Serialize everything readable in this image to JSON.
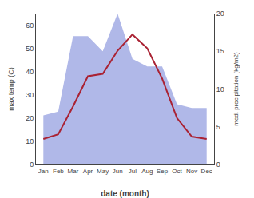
{
  "chart_data": {
    "type": "line",
    "categories": [
      "Jan",
      "Feb",
      "Mar",
      "Apr",
      "May",
      "Jun",
      "Jul",
      "Aug",
      "Sep",
      "Oct",
      "Nov",
      "Dec"
    ],
    "series": [
      {
        "type": "area",
        "color": "#b0b8e8",
        "axis": "y2",
        "values": [
          6.5,
          7.0,
          17,
          17,
          15,
          20,
          14,
          13,
          13,
          8,
          7.5,
          7.5
        ]
      },
      {
        "type": "line",
        "color": "#aa2233",
        "values": [
          11,
          13,
          25,
          38,
          39,
          49,
          56,
          50,
          37,
          20,
          12,
          11
        ]
      }
    ],
    "xlabel": "date (month)",
    "ylabel": "max temp (C)",
    "y2label": "med. precipitation (kg/m2)",
    "ylim": [
      0,
      65
    ],
    "yticks": [
      0,
      10,
      20,
      30,
      40,
      50,
      60
    ],
    "y2lim": [
      0,
      20
    ],
    "y2ticks": [
      0,
      5,
      10,
      15,
      20
    ],
    "grid": false
  }
}
